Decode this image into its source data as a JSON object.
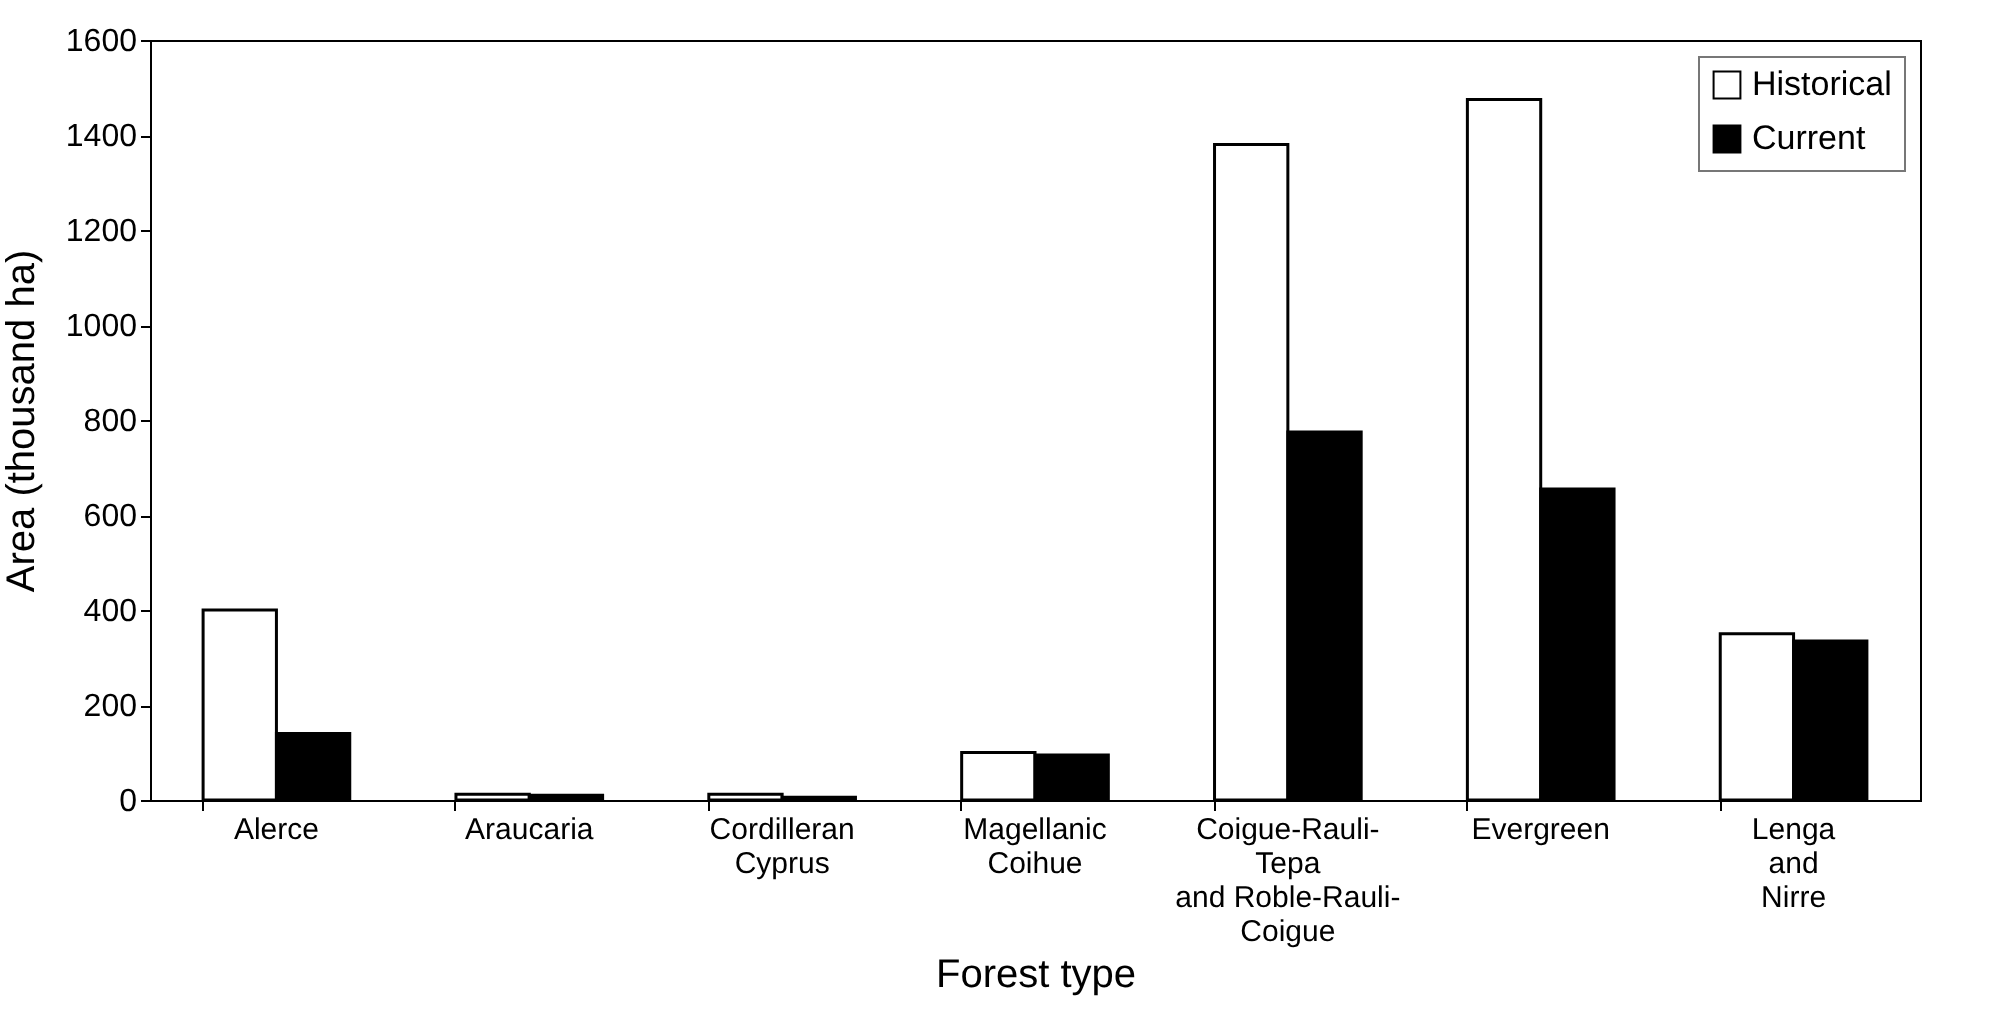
{
  "chart_data": {
    "type": "bar",
    "xlabel": "Forest type",
    "ylabel": "Area (thousand ha)",
    "categories": [
      "Alerce",
      "Araucaria",
      "Cordilleran\nCyprus",
      "Magellanic\nCoihue",
      "Coigue-Rauli-\nTepa\nand Roble-Rauli-\nCoigue",
      "Evergreen",
      "Lenga\nand\nNirre"
    ],
    "series": [
      {
        "name": "Historical",
        "color": "#ffffff",
        "values": [
          400,
          12,
          12,
          100,
          1380,
          1475,
          350
        ]
      },
      {
        "name": "Current",
        "color": "#000000",
        "values": [
          140,
          10,
          6,
          95,
          775,
          655,
          335
        ]
      }
    ],
    "ylim": [
      0,
      1600
    ],
    "yticks": [
      0,
      200,
      400,
      600,
      800,
      1000,
      1200,
      1400,
      1600
    ],
    "grid": false,
    "legend": "top right"
  }
}
